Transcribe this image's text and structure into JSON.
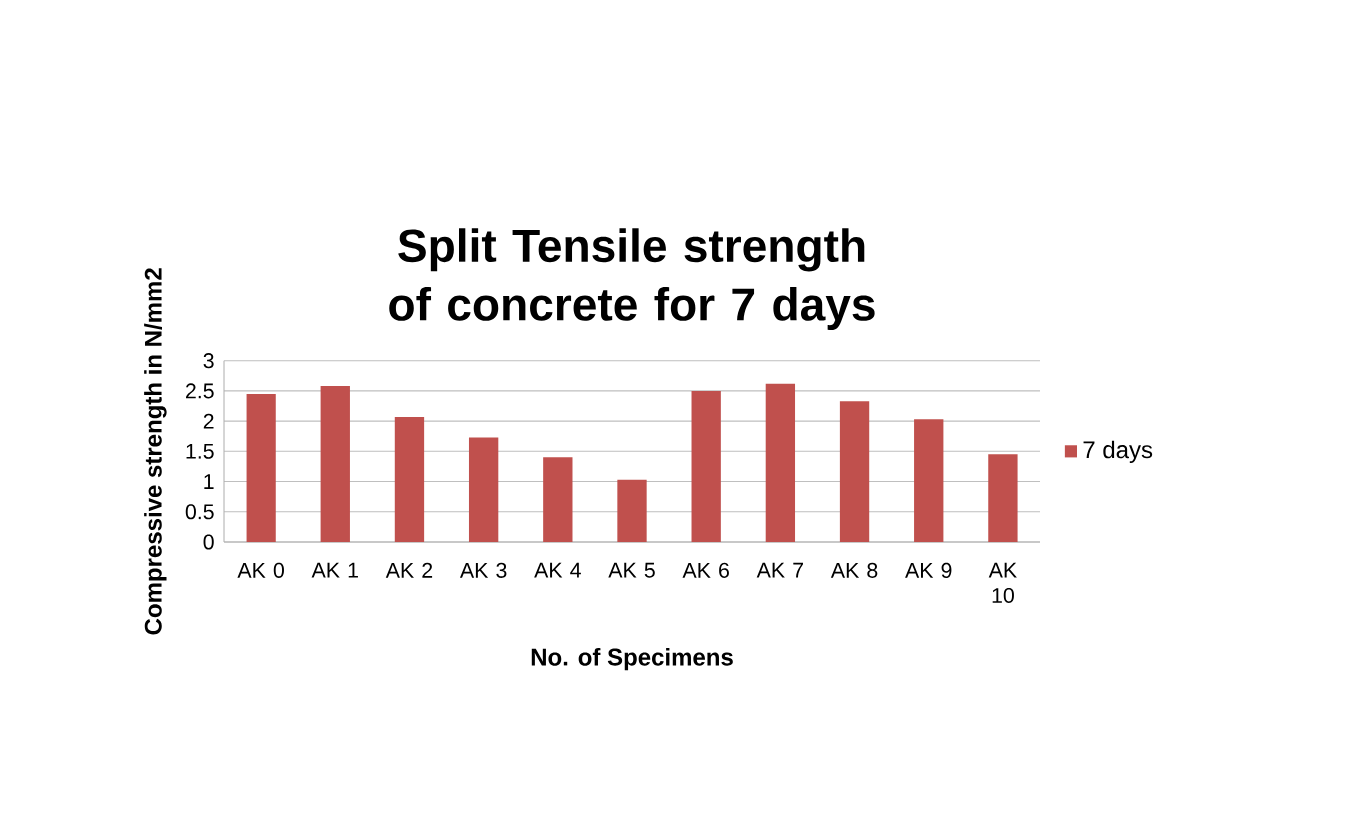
{
  "chart_data": {
    "type": "bar",
    "title": "Split Tensile strength of concrete for 7 days",
    "xlabel": "No. of Specimens",
    "ylabel": "Compressive strength in N/mm2",
    "categories": [
      "AK 0",
      "AK 1",
      "AK 2",
      "AK 3",
      "AK 4",
      "AK 5",
      "AK 6",
      "AK 7",
      "AK 8",
      "AK 9",
      "AK 10"
    ],
    "series": [
      {
        "name": "7 days",
        "color": "#c0504d",
        "values": [
          2.45,
          2.58,
          2.07,
          1.73,
          1.4,
          1.03,
          2.5,
          2.62,
          2.33,
          2.03,
          1.45
        ]
      }
    ],
    "ylim": [
      0,
      3
    ],
    "yticks": [
      0,
      0.5,
      1,
      1.5,
      2,
      2.5,
      3
    ],
    "grid": "y",
    "legend": "right"
  }
}
